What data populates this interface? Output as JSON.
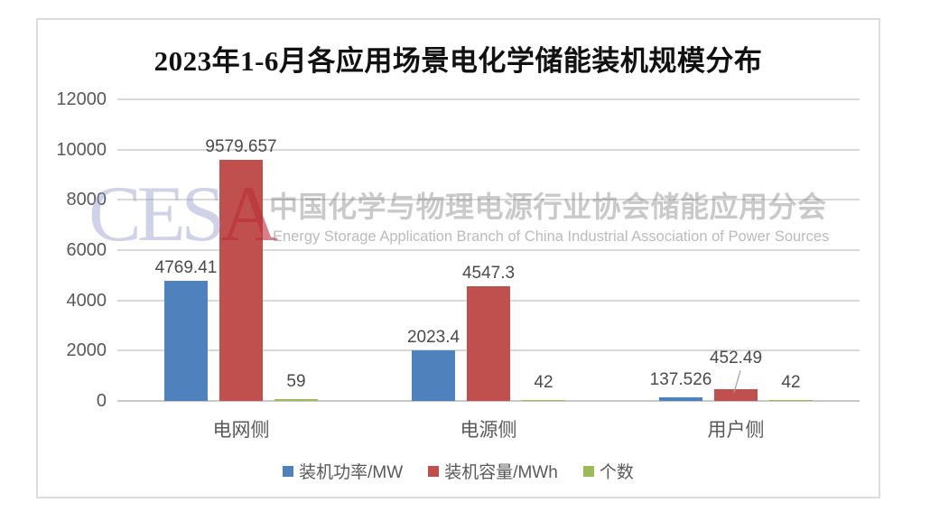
{
  "chart_data": {
    "type": "bar",
    "title": "2023年1-6月各应用场景电化学储能装机规模分布",
    "categories": [
      "电网侧",
      "电源侧",
      "用户侧"
    ],
    "series": [
      {
        "name": "装机功率/MW",
        "color": "#4F81BD",
        "values": [
          4769.41,
          2023.4,
          137.526
        ]
      },
      {
        "name": "装机容量/MWh",
        "color": "#C0504D",
        "values": [
          9579.657,
          4547.3,
          452.49
        ]
      },
      {
        "name": "个数",
        "color": "#9BBB59",
        "values": [
          59,
          42,
          42
        ]
      }
    ],
    "ylim": [
      0,
      12000
    ],
    "yticks": [
      0,
      2000,
      4000,
      6000,
      8000,
      10000,
      12000
    ],
    "grid": true,
    "legend_position": "bottom",
    "data_labels": true,
    "callout": {
      "series_index": 1,
      "category_index": 2
    }
  },
  "watermark": {
    "logo_text": "CESA",
    "logo_letters": [
      {
        "ch": "C",
        "color": "rgba(150,158,205,0.45)"
      },
      {
        "ch": "E",
        "color": "rgba(150,158,205,0.45)"
      },
      {
        "ch": "S",
        "color": "rgba(150,158,205,0.45)"
      },
      {
        "ch": "A",
        "color": "rgba(185,45,55,0.6)"
      }
    ],
    "cn_text": "中国化学与物理电源行业协会储能应用分会",
    "en_text": "Energy Storage Application Branch of China Industrial Association of Power Sources"
  }
}
